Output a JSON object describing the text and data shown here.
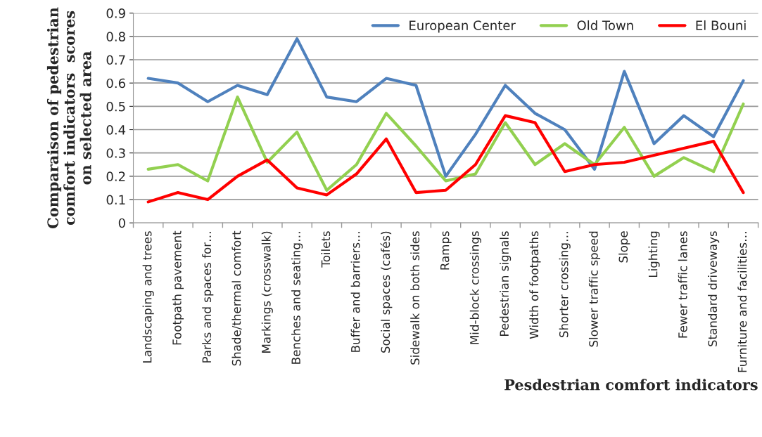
{
  "chart_data": {
    "type": "line",
    "xlabel": "Pesdestrian comfort indicators",
    "ylabel": "Comparaison of pedestrian comfort indicators  scores on selected area",
    "categories": [
      "Landscaping and trees",
      "Footpath pavement",
      "Parks and spaces for…",
      "Shade/thermal comfort",
      "Markings (crosswalk)",
      "Benches and seating…",
      "Toilets",
      "Buffer and barriers…",
      "Social spaces (cafés)",
      "Sidewalk on both sides",
      "Ramps",
      "Mid-block crossings",
      "Pedestrian signals",
      "Width of footpaths",
      "Shorter crossing…",
      "Slower traffic speed",
      "Slope",
      "Lighting",
      "Fewer traffic lanes",
      "Standard driveways",
      "Furniture and facilities…"
    ],
    "series": [
      {
        "name": "European Center",
        "color": "#4f81bd",
        "values": [
          0.62,
          0.6,
          0.52,
          0.59,
          0.55,
          0.79,
          0.54,
          0.52,
          0.62,
          0.59,
          0.2,
          0.38,
          0.59,
          0.47,
          0.4,
          0.23,
          0.65,
          0.34,
          0.46,
          0.37,
          0.61
        ]
      },
      {
        "name": "Old Town",
        "color": "#92d050",
        "values": [
          0.23,
          0.25,
          0.18,
          0.54,
          0.26,
          0.39,
          0.14,
          0.25,
          0.47,
          0.33,
          0.18,
          0.21,
          0.43,
          0.25,
          0.34,
          0.25,
          0.41,
          0.2,
          0.28,
          0.22,
          0.51
        ]
      },
      {
        "name": "El Bouni",
        "color": "#ff0000",
        "values": [
          0.09,
          0.13,
          0.1,
          0.2,
          0.27,
          0.15,
          0.12,
          0.21,
          0.36,
          0.13,
          0.14,
          0.25,
          0.46,
          0.43,
          0.22,
          0.25,
          0.26,
          0.29,
          0.32,
          0.35,
          0.13
        ]
      }
    ],
    "ylim": [
      0,
      0.9
    ],
    "yticks": [
      0,
      0.1,
      0.2,
      0.3,
      0.4,
      0.5,
      0.6,
      0.7,
      0.8,
      0.9
    ],
    "grid": "y",
    "legend": "top right",
    "marker": "none",
    "line_style": "solid"
  }
}
